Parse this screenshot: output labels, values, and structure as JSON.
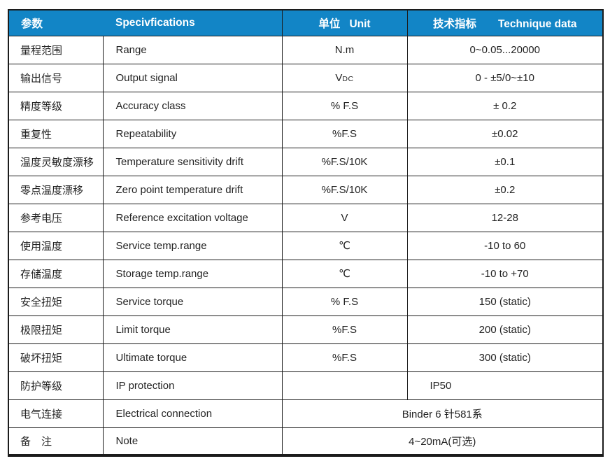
{
  "colors": {
    "header_background": "#1285c6",
    "header_text": "#ffffff",
    "border": "#1c1c1c",
    "body_text": "#232323"
  },
  "header": {
    "col1": "参数",
    "col2": "Specivfications",
    "col3_zh": "单位",
    "col3_en": "Unit",
    "col4_zh": "技术指标",
    "col4_en": "Technique data"
  },
  "rows": [
    {
      "zh": "量程范围",
      "en": "Range",
      "unit": "N.m",
      "value": "0~0.05...20000"
    },
    {
      "zh": "输出信号",
      "en": "Output signal",
      "unit_main": "V",
      "unit_sub": "DC",
      "value": "0 - ±5/0~±10"
    },
    {
      "zh": "精度等级",
      "en": "Accuracy class",
      "unit": "% F.S",
      "value": "± 0.2"
    },
    {
      "zh": "重复性",
      "en": "Repeatability",
      "unit": "%F.S",
      "value": "±0.02"
    },
    {
      "zh": "温度灵敏度漂移",
      "en": "Temperature sensitivity drift",
      "unit": "%F.S/10K",
      "value": "±0.1"
    },
    {
      "zh": "零点温度漂移",
      "en": "Zero point temperature drift",
      "unit": "%F.S/10K",
      "value": "±0.2"
    },
    {
      "zh": "参考电压",
      "en": "Reference excitation voltage",
      "unit": "V",
      "value": "12-28"
    },
    {
      "zh": "使用温度",
      "en": "Service temp.range",
      "unit": "℃",
      "value": "-10 to 60"
    },
    {
      "zh": "存储温度",
      "en": "Storage temp.range",
      "unit": "℃",
      "value": "-10 to +70"
    },
    {
      "zh": "安全扭矩",
      "en": "Service torque",
      "unit": "% F.S",
      "value": "150 (static)"
    },
    {
      "zh": "极限扭矩",
      "en": "Limit torque",
      "unit": "%F.S",
      "value": "200 (static)"
    },
    {
      "zh": "破坏扭矩",
      "en": "Ultimate torque",
      "unit": "%F.S",
      "value": "300 (static)"
    },
    {
      "zh": "防护等级",
      "en": "IP protection",
      "unit": "",
      "value": "IP50",
      "value_align": "left"
    },
    {
      "zh": "电气连接",
      "en": "Electrical connection",
      "merged_value": "Binder 6 针581系"
    },
    {
      "zh": "备　注",
      "en": "Note",
      "merged_value": "4~20mA(可选)"
    }
  ]
}
